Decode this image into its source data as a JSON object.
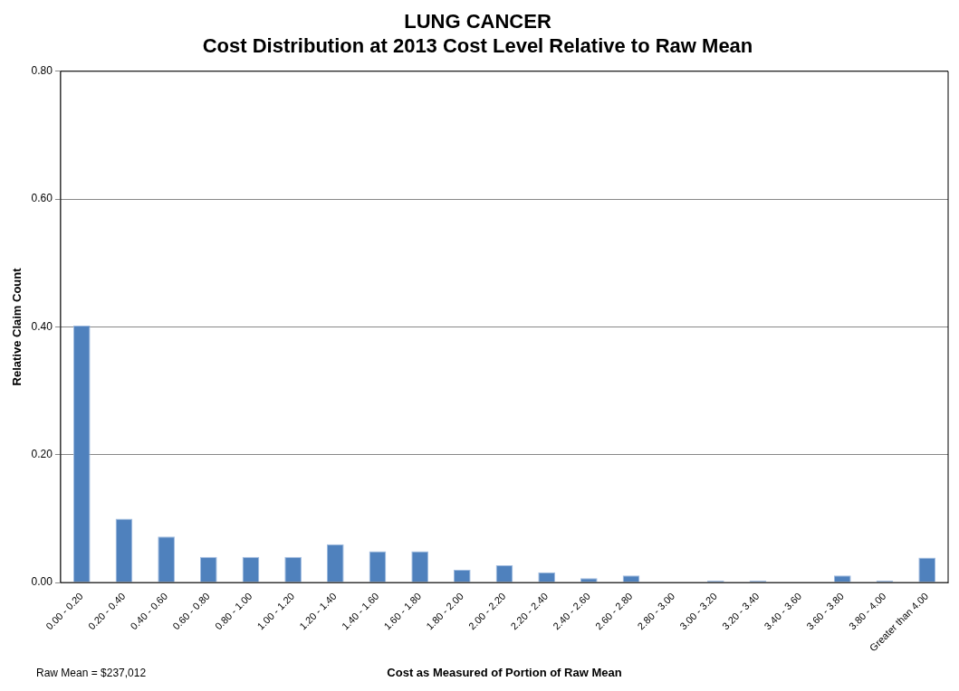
{
  "chart_data": {
    "type": "bar",
    "title": [
      "LUNG CANCER",
      "Cost Distribution at 2013 Cost Level Relative to Raw Mean"
    ],
    "xlabel": "Cost as Measured of Portion of Raw Mean",
    "ylabel": "Relative Claim Count",
    "annotations": [
      "Raw Mean = $237,012"
    ],
    "categories": [
      "0.00 - 0.20",
      "0.20 - 0.40",
      "0.40 - 0.60",
      "0.60 - 0.80",
      "0.80 - 1.00",
      "1.00 - 1.20",
      "1.20 - 1.40",
      "1.40 - 1.60",
      "1.60 - 1.80",
      "1.80 - 2.00",
      "2.00 - 2.20",
      "2.20 - 2.40",
      "2.40 - 2.60",
      "2.60 - 2.80",
      "2.80 - 3.00",
      "3.00 - 3.20",
      "3.20 - 3.40",
      "3.40 - 3.60",
      "3.60 - 3.80",
      "3.80 - 4.00",
      "Greater than 4.00"
    ],
    "values": [
      0.402,
      0.1,
      0.072,
      0.04,
      0.04,
      0.04,
      0.06,
      0.049,
      0.049,
      0.02,
      0.027,
      0.016,
      0.007,
      0.011,
      0,
      0.003,
      0.003,
      0,
      0.011,
      0.003,
      0.039
    ],
    "color": "#4f81bd",
    "ylim": [
      0,
      0.8
    ],
    "yticks": [
      {
        "value": 0,
        "label": "0.00"
      },
      {
        "value": 0.2,
        "label": "0.20"
      },
      {
        "value": 0.4,
        "label": "0.40"
      },
      {
        "value": 0.6,
        "label": "0.60"
      },
      {
        "value": 0.8,
        "label": "0.80"
      }
    ],
    "grid": "y",
    "legend": false
  }
}
